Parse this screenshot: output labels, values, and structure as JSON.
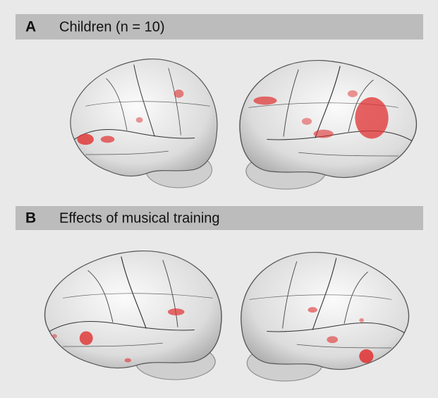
{
  "panels": [
    {
      "letter": "A",
      "title": "Children (n = 10)"
    },
    {
      "letter": "B",
      "title": "Effects of musical training"
    }
  ]
}
